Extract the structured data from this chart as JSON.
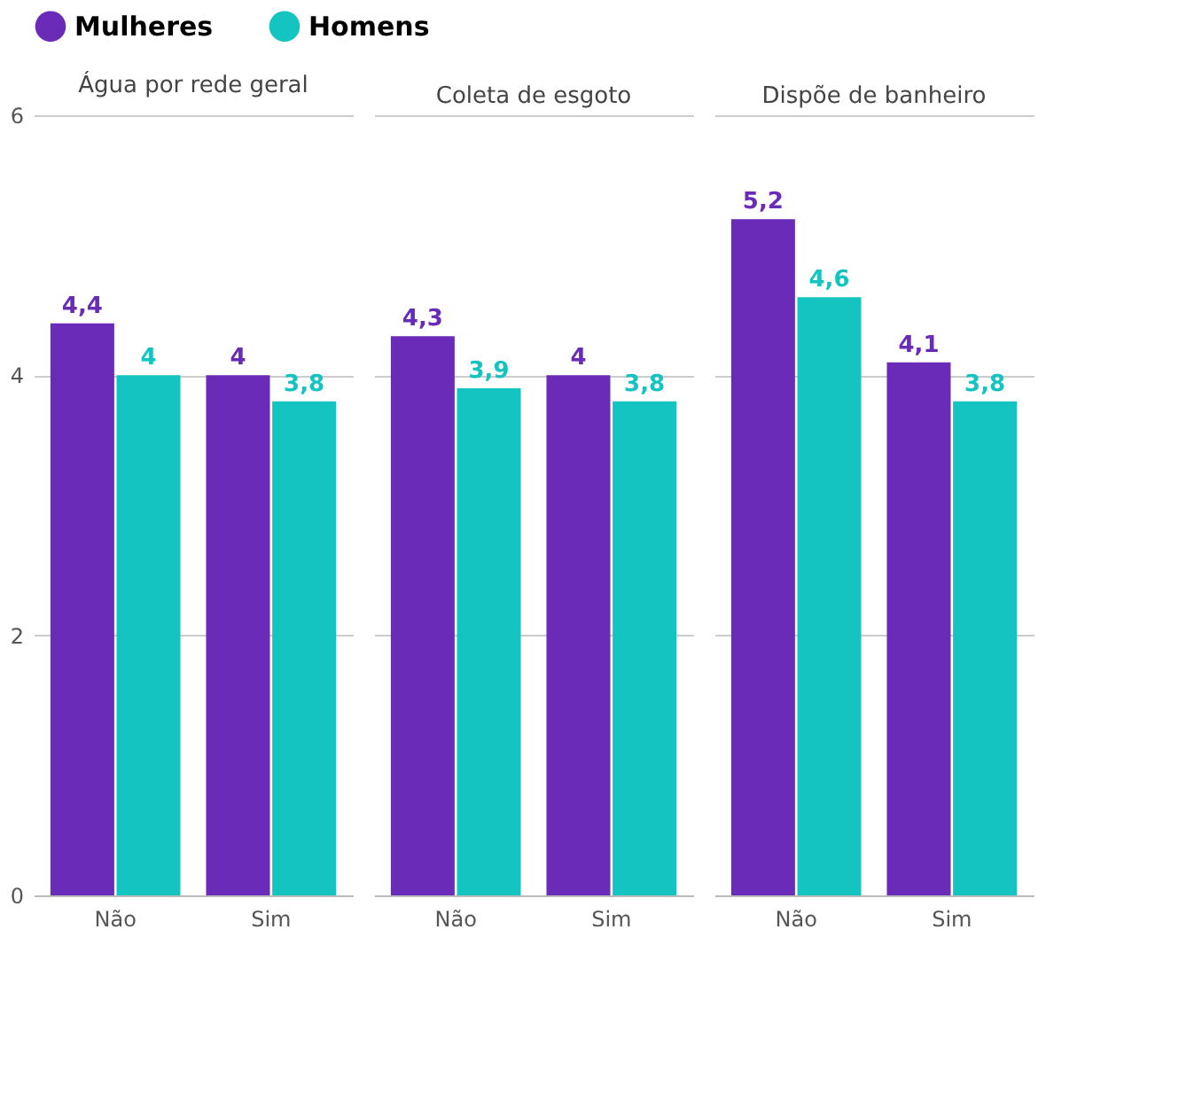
{
  "chart_data": [
    {
      "type": "bar",
      "title": "Água por rede geral",
      "categories": [
        "Não",
        "Sim"
      ],
      "series": [
        {
          "name": "Mulheres",
          "color": "#6a2bb8",
          "values": [
            4.4,
            4
          ],
          "value_labels": [
            "4,4",
            "4"
          ]
        },
        {
          "name": "Homens",
          "color": "#13c4c0",
          "values": [
            4,
            3.8
          ],
          "value_labels": [
            "4",
            "3,8"
          ]
        }
      ],
      "ylim": [
        0,
        6
      ],
      "yticks": [
        0,
        2,
        4,
        6
      ],
      "grid": "y",
      "legend": "top"
    },
    {
      "type": "bar",
      "title": "Coleta de esgoto",
      "categories": [
        "Não",
        "Sim"
      ],
      "series": [
        {
          "name": "Mulheres",
          "color": "#6a2bb8",
          "values": [
            4.3,
            4
          ],
          "value_labels": [
            "4,3",
            "4"
          ]
        },
        {
          "name": "Homens",
          "color": "#13c4c0",
          "values": [
            3.9,
            3.8
          ],
          "value_labels": [
            "3,9",
            "3,8"
          ]
        }
      ],
      "ylim": [
        0,
        6
      ],
      "yticks": [
        0,
        2,
        4,
        6
      ],
      "grid": "y",
      "tick_labels": "x",
      "legend": "top"
    },
    {
      "type": "bar",
      "title": "Dispõe de banheiro",
      "categories": [
        "Não",
        "Sim"
      ],
      "series": [
        {
          "name": "Mulheres",
          "color": "#6a2bb8",
          "values": [
            5.2,
            4.1
          ],
          "value_labels": [
            "5,2",
            "4,1"
          ]
        },
        {
          "name": "Homens",
          "color": "#13c4c0",
          "values": [
            4.6,
            3.8
          ],
          "value_labels": [
            "4,6",
            "3,8"
          ]
        }
      ],
      "ylim": [
        0,
        6
      ],
      "yticks": [
        0,
        2,
        4,
        6
      ],
      "grid": "y",
      "tick_labels": "x",
      "legend": "top"
    }
  ]
}
